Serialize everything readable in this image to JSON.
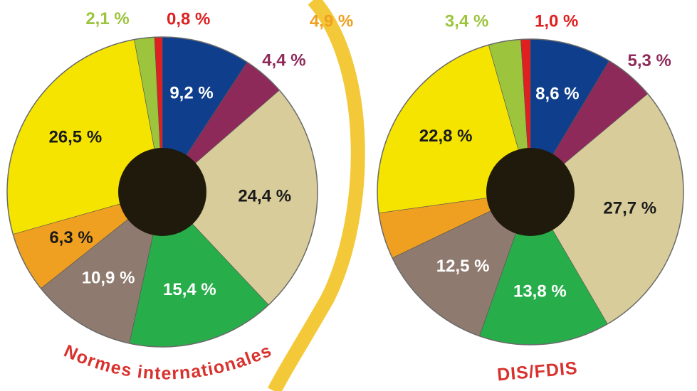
{
  "chart_data": [
    {
      "type": "pie",
      "title": "Normes internationales",
      "values": [
        9.2,
        4.4,
        24.4,
        15.4,
        10.9,
        6.3,
        26.5,
        2.1,
        0.8
      ],
      "value_labels": [
        "9,2 %",
        "4,4 %",
        "24,4 %",
        "15,4 %",
        "10,9 %",
        "6,3 %",
        "26,5 %",
        "2,1 %",
        "0,8 %"
      ],
      "colors": [
        "#0f3f8c",
        "#8e2a5a",
        "#d8cc9a",
        "#27ae4a",
        "#8e7a6e",
        "#f0a020",
        "#f5e400",
        "#9cc43c",
        "#e02020"
      ]
    },
    {
      "type": "pie",
      "title": "DIS/FDIS",
      "values": [
        8.6,
        5.3,
        27.7,
        13.8,
        12.5,
        4.9,
        22.8,
        3.4,
        1.0
      ],
      "value_labels": [
        "8,6 %",
        "5,3 %",
        "27,7 %",
        "13,8 %",
        "12,5 %",
        "4,9 %",
        "22,8 %",
        "3,4 %",
        "1,0 %"
      ],
      "colors": [
        "#0f3f8c",
        "#8e2a5a",
        "#d8cc9a",
        "#27ae4a",
        "#8e7a6e",
        "#f0a020",
        "#f5e400",
        "#9cc43c",
        "#e02020"
      ]
    }
  ]
}
